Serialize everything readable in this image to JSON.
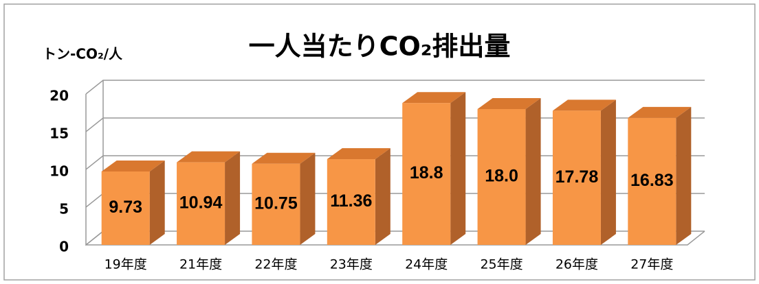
{
  "chart_data": {
    "type": "bar3d",
    "title": "一人当たりCO₂排出量",
    "y_axis_label": "トン-CO₂/人",
    "categories": [
      "19年度",
      "21年度",
      "22年度",
      "23年度",
      "24年度",
      "25年度",
      "26年度",
      "27年度"
    ],
    "values": [
      9.73,
      10.94,
      10.75,
      11.36,
      18.8,
      18.0,
      17.78,
      16.83
    ],
    "value_labels": [
      "9.73",
      "10.94",
      "10.75",
      "11.36",
      "18.8",
      "18.0",
      "17.78",
      "16.83"
    ],
    "color": "#f79646",
    "ylim": [
      0,
      20
    ],
    "yticks": [
      0,
      5,
      10,
      15,
      20
    ],
    "grid": true
  }
}
